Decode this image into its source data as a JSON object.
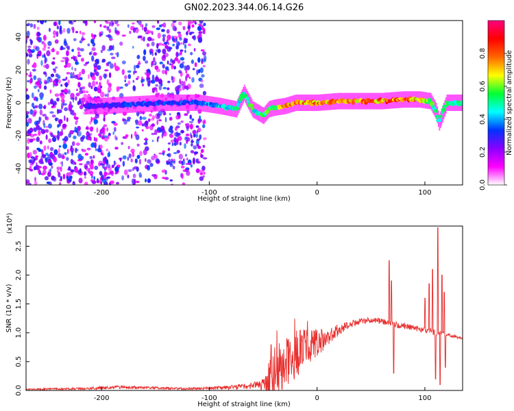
{
  "title": "GN02.2023.344.06.14.G26",
  "colorbar": {
    "label": "Normalized spectral amplitude",
    "ticks": [
      "0.0",
      "0.2",
      "0.4",
      "0.6",
      "0.8"
    ],
    "tick_values": [
      0.0,
      0.2,
      0.4,
      0.6,
      0.8
    ],
    "colors": [
      "#ffffff",
      "#ff00ff",
      "#8a00ff",
      "#0033ff",
      "#00ffff",
      "#00ff33",
      "#ffff00",
      "#ff6600",
      "#ff0000",
      "#ff0080"
    ]
  },
  "chart_data": [
    {
      "type": "heatmap",
      "title": "GN02.2023.344.06.14.G26",
      "xlabel": "Height of straight line (km)",
      "ylabel": "Frequency (Hz)",
      "xlim": [
        -270,
        135
      ],
      "ylim": [
        -50,
        50
      ],
      "xticks": [
        -200,
        -100,
        0,
        100
      ],
      "xtick_labels": [
        "-200",
        "-100",
        "0",
        "100"
      ],
      "yticks": [
        40,
        20,
        0,
        -20,
        -40
      ],
      "ytick_labels": [
        "40",
        "20",
        "0",
        "-20",
        "-40"
      ],
      "ridge": {
        "x": [
          -200,
          -170,
          -140,
          -110,
          -90,
          -75,
          -68,
          -60,
          -55,
          -50,
          -45,
          -40,
          -30,
          -20,
          0,
          20,
          40,
          60,
          80,
          95,
          105,
          110,
          113,
          120,
          135
        ],
        "y": [
          -2,
          -1,
          0,
          0,
          -2,
          -4,
          6,
          -4,
          -6,
          -8,
          -4,
          -3,
          -2,
          0,
          0,
          1,
          1,
          1,
          2,
          2,
          1,
          -5,
          -12,
          0,
          0
        ],
        "amp": [
          0.3,
          0.35,
          0.35,
          0.35,
          0.45,
          0.5,
          0.55,
          0.55,
          0.5,
          0.6,
          0.55,
          0.6,
          0.75,
          0.85,
          0.8,
          0.8,
          0.8,
          0.8,
          0.85,
          0.75,
          0.6,
          0.55,
          0.5,
          0.55,
          0.55
        ]
      }
    },
    {
      "type": "line",
      "xlabel": "Height of straight line (km)",
      "ylabel": "SNR (10 * v/v)",
      "y_multiplier": "(x10⁴)",
      "xlim": [
        -270,
        135
      ],
      "ylim": [
        0,
        2.85
      ],
      "xticks": [
        -200,
        -100,
        0,
        100
      ],
      "xtick_labels": [
        "-200",
        "-100",
        "0",
        "100"
      ],
      "yticks": [
        0.0,
        0.5,
        1.0,
        1.5,
        2.0,
        2.5
      ],
      "ytick_labels": [
        "0.0",
        "0.5",
        "1.0",
        "1.5",
        "2.0",
        "2.5"
      ],
      "color": "#e8302f",
      "envelope": {
        "x": [
          -270,
          -220,
          -180,
          -160,
          -120,
          -100,
          -80,
          -60,
          -50,
          -45,
          -40,
          -30,
          -20,
          -10,
          0,
          10,
          20,
          30,
          40,
          50,
          60,
          70,
          80,
          90,
          100,
          110,
          120,
          135
        ],
        "y": [
          0.02,
          0.03,
          0.06,
          0.05,
          0.03,
          0.04,
          0.05,
          0.08,
          0.1,
          0.2,
          0.35,
          0.5,
          0.62,
          0.72,
          0.82,
          0.92,
          1.05,
          1.15,
          1.2,
          1.22,
          1.2,
          1.15,
          1.12,
          1.08,
          1.05,
          1.0,
          0.97,
          0.9
        ],
        "noise": [
          0.01,
          0.02,
          0.03,
          0.02,
          0.02,
          0.02,
          0.04,
          0.06,
          0.1,
          0.3,
          0.45,
          0.5,
          0.45,
          0.35,
          0.25,
          0.15,
          0.1,
          0.07,
          0.05,
          0.05,
          0.05,
          0.05,
          0.05,
          0.05,
          0.05,
          0.05,
          0.03,
          0.02
        ]
      },
      "spikes": [
        {
          "x": 67,
          "y": 2.25
        },
        {
          "x": 69,
          "y": 1.9
        },
        {
          "x": 71,
          "y": 0.3
        },
        {
          "x": 100,
          "y": 1.6
        },
        {
          "x": 104,
          "y": 1.85
        },
        {
          "x": 107,
          "y": 2.1
        },
        {
          "x": 110,
          "y": 0.2
        },
        {
          "x": 112,
          "y": 2.82
        },
        {
          "x": 114,
          "y": 0.1
        },
        {
          "x": 116,
          "y": 2.0
        },
        {
          "x": 118,
          "y": 1.7
        },
        {
          "x": 119,
          "y": 0.4
        }
      ]
    }
  ]
}
